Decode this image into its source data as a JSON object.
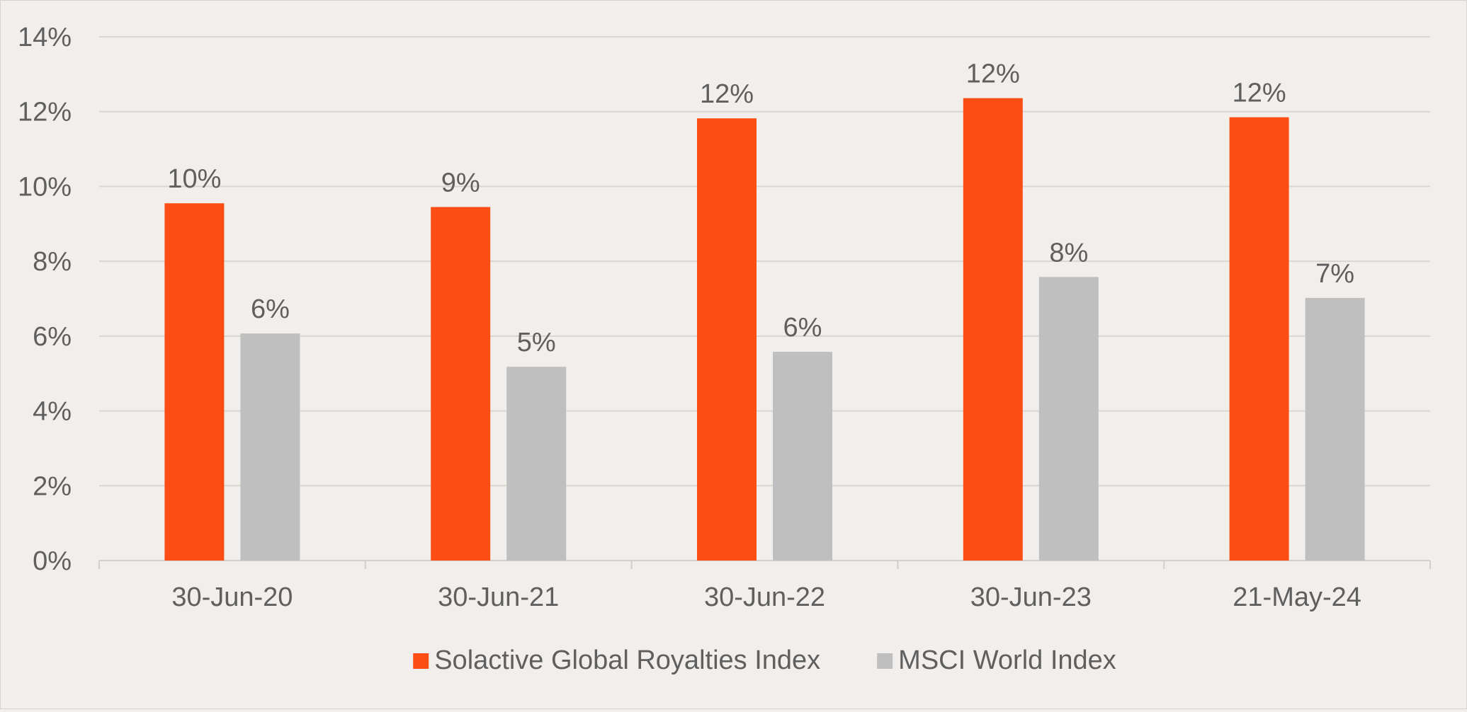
{
  "chart_data": {
    "type": "bar",
    "categories": [
      "30-Jun-20",
      "30-Jun-21",
      "30-Jun-22",
      "30-Jun-23",
      "21-May-24"
    ],
    "series": [
      {
        "name": "Solactive Global Royalties Index",
        "color": "#fc4e14",
        "values": [
          9.55,
          9.45,
          11.82,
          12.36,
          11.85
        ],
        "labels": [
          "10%",
          "9%",
          "12%",
          "12%",
          "12%"
        ]
      },
      {
        "name": "MSCI World Index",
        "color": "#bfbfbf",
        "values": [
          6.07,
          5.18,
          5.58,
          7.58,
          7.02
        ],
        "labels": [
          "6%",
          "5%",
          "6%",
          "8%",
          "7%"
        ]
      }
    ],
    "ylim": [
      0,
      14
    ],
    "yticks": [
      0,
      2,
      4,
      6,
      8,
      10,
      12,
      14
    ],
    "ytick_labels": [
      "0%",
      "2%",
      "4%",
      "6%",
      "8%",
      "10%",
      "12%",
      "14%"
    ],
    "title": "",
    "xlabel": "",
    "ylabel": "",
    "grid": true,
    "legend_position": "bottom-center"
  }
}
